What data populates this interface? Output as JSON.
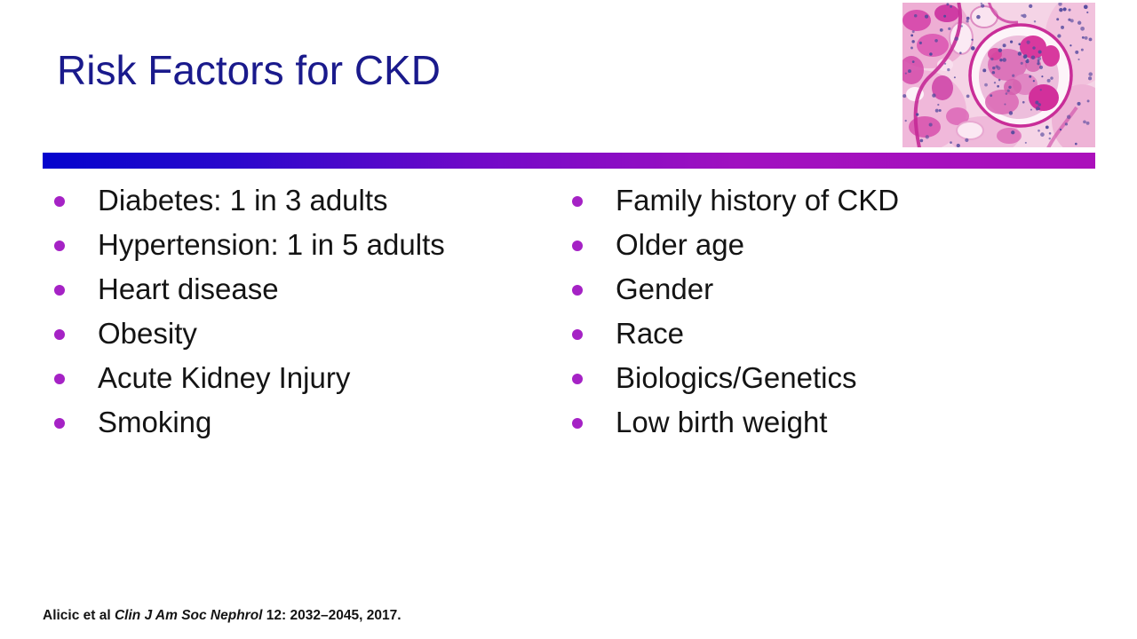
{
  "slide": {
    "title": "Risk Factors for CKD",
    "bullets_left": [
      "Diabetes: 1 in 3 adults",
      "Hypertension: 1 in 5 adults",
      "Heart disease",
      "Obesity",
      "Acute Kidney Injury",
      "Smoking"
    ],
    "bullets_right": [
      "Family history of CKD",
      "Older age",
      "Gender",
      "Race",
      "Biologics/Genetics",
      "Low birth weight"
    ],
    "citation": {
      "authors": "Alicic et al ",
      "journal": "Clin J Am Soc Nephrol",
      "tail": " 12: 2032–2045, 2017."
    },
    "image_name": "kidney-glomerulus-histology",
    "colors": {
      "title": "#1a1a8c",
      "bullet": "#a522c5",
      "text": "#141414",
      "bar_start": "#0404cd",
      "bar_mid": "#7309c8",
      "bar_end": "#ab10bb"
    }
  }
}
